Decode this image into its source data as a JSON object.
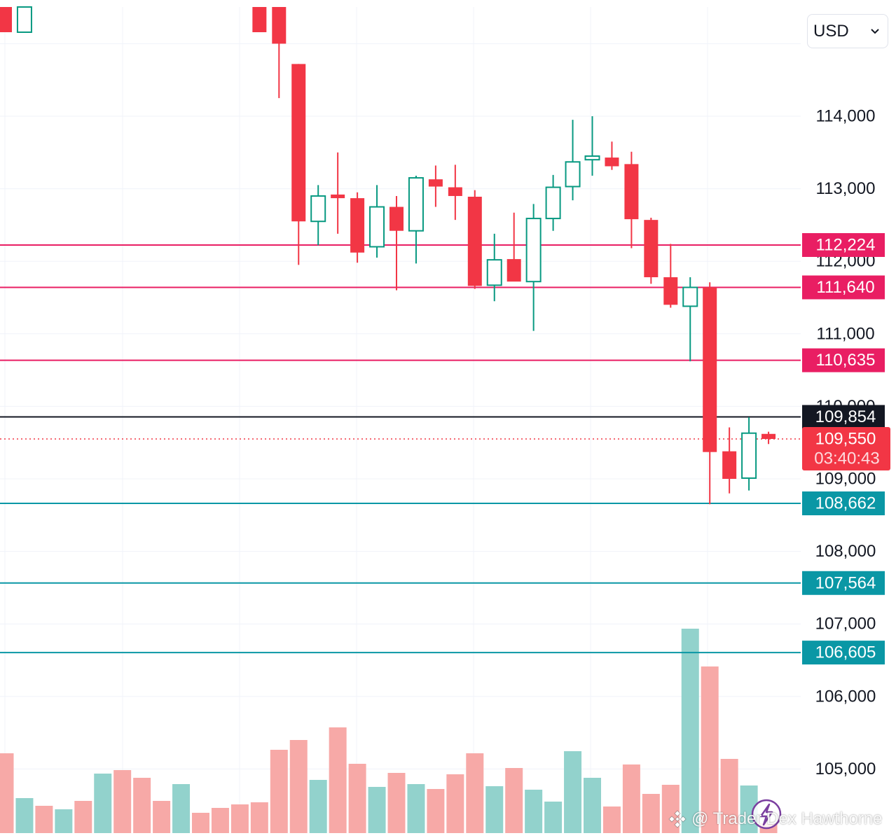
{
  "currency_selector": {
    "value": "USD",
    "icon": "chevron-down-icon"
  },
  "watermark": {
    "text": "@ Trader Dex Hawthorne",
    "logo": "diamond-logo-icon"
  },
  "icons": {
    "bolt_button": "lightning-icon"
  },
  "colors": {
    "up": "#089981",
    "down": "#f23645",
    "resistance": "#e91e63",
    "support": "#0a97a5",
    "last_price": "#131722",
    "volume_up": "#92d2cc",
    "volume_down": "#f7a9a7"
  },
  "chart_data": {
    "type": "candlestick",
    "price_axis": {
      "ylim": [
        104500,
        115850
      ],
      "ticks": [
        "114,000",
        "113,000",
        "112,000",
        "111,000",
        "110,000",
        "109,000",
        "108,000",
        "107,000",
        "106,000",
        "105,000"
      ],
      "tick_values": [
        114000,
        113000,
        112000,
        111000,
        110000,
        109000,
        108000,
        107000,
        106000,
        105000
      ]
    },
    "grid": true,
    "candles": [
      {
        "o": 115850,
        "h": 115850,
        "l": 115850,
        "c": 115850,
        "dir": "down"
      },
      {
        "o": 115850,
        "h": 115850,
        "l": 115850,
        "c": 115850,
        "dir": "up"
      },
      {
        "o": null,
        "h": null,
        "l": null,
        "c": null
      },
      {
        "o": null,
        "h": null,
        "l": null,
        "c": null
      },
      {
        "o": null,
        "h": null,
        "l": null,
        "c": null
      },
      {
        "o": null,
        "h": null,
        "l": null,
        "c": null
      },
      {
        "o": null,
        "h": null,
        "l": null,
        "c": null
      },
      {
        "o": null,
        "h": null,
        "l": null,
        "c": null
      },
      {
        "o": null,
        "h": null,
        "l": null,
        "c": null
      },
      {
        "o": null,
        "h": null,
        "l": null,
        "c": null
      },
      {
        "o": null,
        "h": null,
        "l": null,
        "c": null
      },
      {
        "o": null,
        "h": null,
        "l": null,
        "c": null
      },
      {
        "o": null,
        "h": null,
        "l": null,
        "c": null
      },
      {
        "o": 115850,
        "h": 115850,
        "l": 115600,
        "c": 115600
      },
      {
        "o": 115550,
        "h": 115700,
        "l": 114250,
        "c": 115000
      },
      {
        "o": 114720,
        "h": 114720,
        "l": 111950,
        "c": 112550
      },
      {
        "o": 112550,
        "h": 113050,
        "l": 112220,
        "c": 112900
      },
      {
        "o": 112920,
        "h": 113500,
        "l": 112380,
        "c": 112870
      },
      {
        "o": 112870,
        "h": 112950,
        "l": 111980,
        "c": 112120
      },
      {
        "o": 112200,
        "h": 113050,
        "l": 112050,
        "c": 112750
      },
      {
        "o": 112750,
        "h": 112900,
        "l": 111600,
        "c": 112420
      },
      {
        "o": 112420,
        "h": 113180,
        "l": 111970,
        "c": 113150
      },
      {
        "o": 113130,
        "h": 113320,
        "l": 112750,
        "c": 113030
      },
      {
        "o": 113020,
        "h": 113330,
        "l": 112570,
        "c": 112900
      },
      {
        "o": 112890,
        "h": 112980,
        "l": 111620,
        "c": 111660
      },
      {
        "o": 111670,
        "h": 112380,
        "l": 111450,
        "c": 112020
      },
      {
        "o": 112030,
        "h": 112670,
        "l": 111740,
        "c": 111720
      },
      {
        "o": 111720,
        "h": 112790,
        "l": 111040,
        "c": 112590
      },
      {
        "o": 112590,
        "h": 113190,
        "l": 112420,
        "c": 113020
      },
      {
        "o": 113030,
        "h": 113950,
        "l": 112840,
        "c": 113370
      },
      {
        "o": 113400,
        "h": 114000,
        "l": 113180,
        "c": 113450
      },
      {
        "o": 113430,
        "h": 113650,
        "l": 113260,
        "c": 113310
      },
      {
        "o": 113340,
        "h": 113510,
        "l": 112180,
        "c": 112580
      },
      {
        "o": 112570,
        "h": 112600,
        "l": 111690,
        "c": 111780
      },
      {
        "o": 111780,
        "h": 112240,
        "l": 111360,
        "c": 111400
      },
      {
        "o": 111380,
        "h": 111780,
        "l": 110620,
        "c": 111640
      },
      {
        "o": 111640,
        "h": 111710,
        "l": 108650,
        "c": 109370
      },
      {
        "o": 109380,
        "h": 109710,
        "l": 108800,
        "c": 109000
      },
      {
        "o": 109010,
        "h": 109850,
        "l": 108840,
        "c": 109630
      },
      {
        "o": 109620,
        "h": 109650,
        "l": 109480,
        "c": 109550
      }
    ],
    "volumes": [
      {
        "v": 114,
        "dir": "down"
      },
      {
        "v": 50,
        "dir": "up"
      },
      {
        "v": 39,
        "dir": "down"
      },
      {
        "v": 34,
        "dir": "up"
      },
      {
        "v": 46,
        "dir": "down"
      },
      {
        "v": 85,
        "dir": "up"
      },
      {
        "v": 90,
        "dir": "down"
      },
      {
        "v": 79,
        "dir": "down"
      },
      {
        "v": 46,
        "dir": "down"
      },
      {
        "v": 70,
        "dir": "up"
      },
      {
        "v": 29,
        "dir": "down"
      },
      {
        "v": 36,
        "dir": "down"
      },
      {
        "v": 41,
        "dir": "down"
      },
      {
        "v": 44,
        "dir": "down"
      },
      {
        "v": 119,
        "dir": "down"
      },
      {
        "v": 133,
        "dir": "down"
      },
      {
        "v": 76,
        "dir": "up"
      },
      {
        "v": 151,
        "dir": "down"
      },
      {
        "v": 99,
        "dir": "down"
      },
      {
        "v": 66,
        "dir": "up"
      },
      {
        "v": 86,
        "dir": "down"
      },
      {
        "v": 70,
        "dir": "up"
      },
      {
        "v": 63,
        "dir": "down"
      },
      {
        "v": 84,
        "dir": "down"
      },
      {
        "v": 114,
        "dir": "down"
      },
      {
        "v": 67,
        "dir": "up"
      },
      {
        "v": 93,
        "dir": "down"
      },
      {
        "v": 62,
        "dir": "up"
      },
      {
        "v": 45,
        "dir": "up"
      },
      {
        "v": 117,
        "dir": "up"
      },
      {
        "v": 79,
        "dir": "up"
      },
      {
        "v": 38,
        "dir": "down"
      },
      {
        "v": 98,
        "dir": "down"
      },
      {
        "v": 56,
        "dir": "down"
      },
      {
        "v": 69,
        "dir": "down"
      },
      {
        "v": 292,
        "dir": "up"
      },
      {
        "v": 238,
        "dir": "down"
      },
      {
        "v": 106,
        "dir": "down"
      },
      {
        "v": 68,
        "dir": "up"
      },
      {
        "v": 14,
        "dir": "down"
      }
    ],
    "levels": [
      {
        "label": "112,224",
        "value": 112224,
        "kind": "resistance"
      },
      {
        "label": "111,640",
        "value": 111640,
        "kind": "resistance"
      },
      {
        "label": "110,635",
        "value": 110635,
        "kind": "resistance"
      },
      {
        "label": "108,662",
        "value": 108662,
        "kind": "support"
      },
      {
        "label": "107,564",
        "value": 107564,
        "kind": "support"
      },
      {
        "label": "106,605",
        "value": 106605,
        "kind": "support"
      }
    ],
    "marked_line": {
      "label": "109,854",
      "value": 109854
    },
    "last_price": {
      "label": "109,550",
      "value": 109550,
      "countdown": "03:40:43"
    }
  }
}
